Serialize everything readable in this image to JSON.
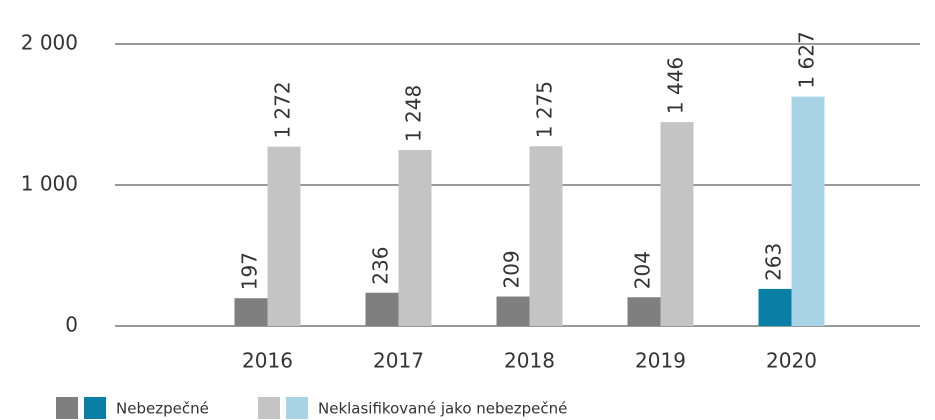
{
  "chart_data": {
    "type": "bar",
    "categories": [
      "2016",
      "2017",
      "2018",
      "2019",
      "2020"
    ],
    "series": [
      {
        "name": "Nebezpečné",
        "colors": [
          "#7f7f7f",
          "#7f7f7f",
          "#7f7f7f",
          "#7f7f7f",
          "#0a7fa6"
        ],
        "values": [
          197,
          236,
          209,
          204,
          263
        ]
      },
      {
        "name": "Neklasifikované jako nebezpečné",
        "colors": [
          "#c4c4c4",
          "#c4c4c4",
          "#c4c4c4",
          "#c4c4c4",
          "#a8d3e4"
        ],
        "values": [
          1272,
          1248,
          1275,
          1446,
          1627
        ],
        "value_labels": [
          "1 272",
          "1 248",
          "1 275",
          "1 446",
          "1 627"
        ]
      }
    ],
    "ylim": [
      0,
      2000
    ],
    "yticks": [
      0,
      {
        "value": 1000,
        "label": "1 000"
      },
      {
        "value": 2000,
        "label": "2 000"
      }
    ],
    "grid": true
  }
}
